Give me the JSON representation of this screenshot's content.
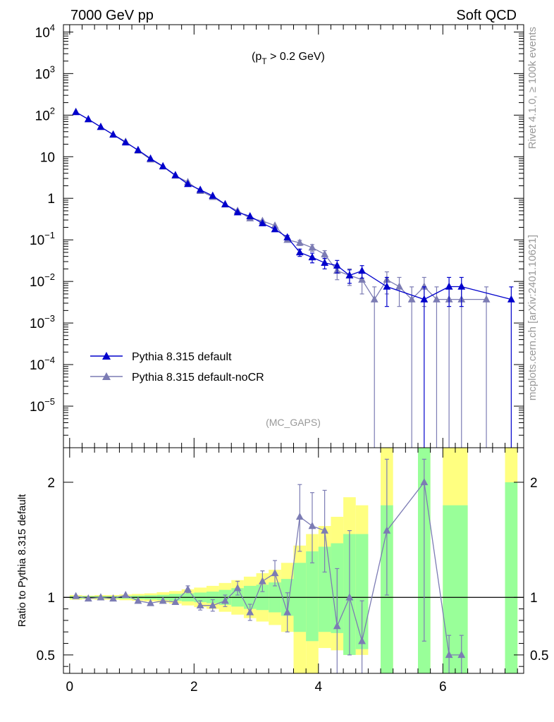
{
  "header": {
    "left": "7000 GeV pp",
    "right": "Soft QCD"
  },
  "side": {
    "rivet": "Rivet 4.1.0, ≥ 100k events",
    "site": "mcplots.cern.ch [arXiv:2401.10621]"
  },
  "cut_label": {
    "base": "(p",
    "sub": "T",
    "rest": " > 0.2 GeV)"
  },
  "analysis": "(MC_GAPS)",
  "colors": {
    "default": "#0000cc",
    "nocr": "#7c7cb4",
    "band_yellow": "#ffff80",
    "band_green": "#99ff99"
  },
  "chart_data": [
    {
      "type": "line",
      "panel": "main",
      "yscale": "log",
      "xlim": [
        -0.1,
        7.3
      ],
      "ylim": [
        1e-06,
        15000
      ],
      "y_ticks": [
        {
          "v": 10000.0,
          "b": "10",
          "e": "4"
        },
        {
          "v": 1000.0,
          "b": "10",
          "e": "3"
        },
        {
          "v": 100.0,
          "b": "10",
          "e": "2"
        },
        {
          "v": 10,
          "b": "10",
          "e": ""
        },
        {
          "v": 1,
          "b": "1",
          "e": ""
        },
        {
          "v": 0.1,
          "b": "10",
          "e": "−1"
        },
        {
          "v": 0.01,
          "b": "10",
          "e": "−2"
        },
        {
          "v": 0.001,
          "b": "10",
          "e": "−3"
        },
        {
          "v": 0.0001,
          "b": "10",
          "e": "−4"
        },
        {
          "v": 1e-05,
          "b": "10",
          "e": "−5"
        }
      ],
      "legend": {
        "position": "lower-left",
        "entries": [
          "Pythia 8.315 default",
          "Pythia 8.315 default-noCR"
        ]
      },
      "series": [
        {
          "name": "Pythia 8.315 default",
          "x": [
            0.1,
            0.3,
            0.5,
            0.7,
            0.9,
            1.1,
            1.3,
            1.5,
            1.7,
            1.9,
            2.1,
            2.3,
            2.5,
            2.7,
            2.9,
            3.1,
            3.3,
            3.5,
            3.7,
            3.9,
            4.1,
            4.3,
            4.5,
            4.7,
            5.1,
            5.7,
            6.1,
            6.3,
            7.1
          ],
          "y": [
            118,
            80,
            52,
            34,
            22,
            14.5,
            9,
            5.9,
            3.6,
            2.2,
            1.6,
            1.15,
            0.72,
            0.46,
            0.37,
            0.25,
            0.18,
            0.115,
            0.05,
            0.038,
            0.028,
            0.024,
            0.014,
            0.018,
            0.0075,
            0.0037,
            0.0075,
            0.0075,
            0.0037
          ],
          "err": [
            0,
            0,
            0,
            0,
            0,
            0,
            0,
            0,
            0,
            0,
            0,
            0,
            0,
            0,
            0,
            0,
            0,
            0.012,
            0.01,
            0.01,
            0.008,
            0.008,
            0.005,
            0.006,
            0.005,
            0.0037,
            0.005,
            0.005,
            0.0037
          ]
        },
        {
          "name": "Pythia 8.315 default-noCR",
          "x": [
            0.1,
            0.3,
            0.5,
            0.7,
            0.9,
            1.1,
            1.3,
            1.5,
            1.7,
            1.9,
            2.1,
            2.3,
            2.5,
            2.7,
            2.9,
            3.1,
            3.3,
            3.5,
            3.7,
            3.9,
            4.1,
            4.3,
            4.5,
            4.7,
            4.9,
            5.1,
            5.3,
            5.5,
            5.7,
            5.9,
            6.1,
            6.3,
            6.7
          ],
          "y": [
            120,
            79,
            52,
            34,
            23,
            14,
            8.6,
            5.8,
            3.5,
            2.45,
            1.5,
            1.08,
            0.71,
            0.5,
            0.33,
            0.285,
            0.22,
            0.1,
            0.085,
            0.065,
            0.045,
            0.018,
            0.014,
            0.011,
            0.0037,
            0.011,
            0.0075,
            0.0037,
            0.0075,
            0.0037,
            0.0037,
            0.0037,
            0.0037
          ],
          "err": [
            0,
            0,
            0,
            0,
            0,
            0,
            0,
            0,
            0,
            0,
            0,
            0,
            0,
            0,
            0,
            0,
            0,
            0.012,
            0.012,
            0.012,
            0.01,
            0.007,
            0.006,
            0.006,
            0.0037,
            0.006,
            0.005,
            0.0037,
            0.005,
            0.0037,
            0.0037,
            0.0037,
            0.0037
          ]
        }
      ]
    },
    {
      "type": "line",
      "panel": "ratio",
      "ylabel": "Ratio to Pythia 8.315 default",
      "xlim": [
        -0.1,
        7.3
      ],
      "ylim": [
        0.34,
        2.3
      ],
      "x_ticks": [
        0,
        2,
        4,
        6
      ],
      "y_ticks": [
        0.5,
        1,
        2
      ],
      "bands": [
        {
          "x0": 0.0,
          "x1": 0.2,
          "y": [
            0.98,
            1.02
          ],
          "g": [
            0.99,
            1.01
          ]
        },
        {
          "x0": 0.2,
          "x1": 0.4,
          "y": [
            0.985,
            1.015
          ],
          "g": [
            0.99,
            1.01
          ]
        },
        {
          "x0": 0.4,
          "x1": 0.6,
          "y": [
            0.98,
            1.02
          ],
          "g": [
            0.99,
            1.01
          ]
        },
        {
          "x0": 0.6,
          "x1": 0.8,
          "y": [
            0.98,
            1.02
          ],
          "g": [
            0.99,
            1.01
          ]
        },
        {
          "x0": 0.8,
          "x1": 1.0,
          "y": [
            0.975,
            1.025
          ],
          "g": [
            0.988,
            1.012
          ]
        },
        {
          "x0": 1.0,
          "x1": 1.2,
          "y": [
            0.97,
            1.03
          ],
          "g": [
            0.985,
            1.015
          ]
        },
        {
          "x0": 1.2,
          "x1": 1.4,
          "y": [
            0.965,
            1.035
          ],
          "g": [
            0.982,
            1.018
          ]
        },
        {
          "x0": 1.4,
          "x1": 1.6,
          "y": [
            0.955,
            1.045
          ],
          "g": [
            0.978,
            1.022
          ]
        },
        {
          "x0": 1.6,
          "x1": 1.8,
          "y": [
            0.945,
            1.055
          ],
          "g": [
            0.97,
            1.03
          ]
        },
        {
          "x0": 1.8,
          "x1": 2.0,
          "y": [
            0.93,
            1.07
          ],
          "g": [
            0.965,
            1.035
          ]
        },
        {
          "x0": 2.0,
          "x1": 2.2,
          "y": [
            0.915,
            1.085
          ],
          "g": [
            0.958,
            1.042
          ]
        },
        {
          "x0": 2.2,
          "x1": 2.4,
          "y": [
            0.9,
            1.1
          ],
          "g": [
            0.95,
            1.05
          ]
        },
        {
          "x0": 2.4,
          "x1": 2.6,
          "y": [
            0.875,
            1.125
          ],
          "g": [
            0.935,
            1.065
          ]
        },
        {
          "x0": 2.6,
          "x1": 2.8,
          "y": [
            0.85,
            1.15
          ],
          "g": [
            0.92,
            1.08
          ]
        },
        {
          "x0": 2.8,
          "x1": 3.0,
          "y": [
            0.82,
            1.18
          ],
          "g": [
            0.9,
            1.1
          ]
        },
        {
          "x0": 3.0,
          "x1": 3.2,
          "y": [
            0.79,
            1.21
          ],
          "g": [
            0.89,
            1.11
          ]
        },
        {
          "x0": 3.2,
          "x1": 3.4,
          "y": [
            0.76,
            1.24
          ],
          "g": [
            0.87,
            1.13
          ]
        },
        {
          "x0": 3.4,
          "x1": 3.6,
          "y": [
            0.7,
            1.3
          ],
          "g": [
            0.84,
            1.16
          ]
        },
        {
          "x0": 3.6,
          "x1": 3.8,
          "y": [
            0.34,
            1.45
          ],
          "g": [
            0.7,
            1.3
          ]
        },
        {
          "x0": 3.8,
          "x1": 4.0,
          "y": [
            0.34,
            1.55
          ],
          "g": [
            0.62,
            1.4
          ]
        },
        {
          "x0": 4.0,
          "x1": 4.2,
          "y": [
            0.56,
            1.62
          ],
          "g": [
            0.7,
            1.44
          ]
        },
        {
          "x0": 4.2,
          "x1": 4.4,
          "y": [
            0.54,
            1.7
          ],
          "g": [
            0.69,
            1.47
          ]
        },
        {
          "x0": 4.4,
          "x1": 4.6,
          "y": [
            0.5,
            1.87
          ],
          "g": [
            0.5,
            1.55
          ]
        },
        {
          "x0": 4.6,
          "x1": 4.8,
          "y": [
            0.5,
            1.8
          ],
          "g": [
            0.55,
            1.55
          ]
        },
        {
          "x0": 5.0,
          "x1": 5.2,
          "y": [
            0.34,
            2.3
          ],
          "g": [
            0.34,
            1.8
          ]
        },
        {
          "x0": 5.6,
          "x1": 5.8,
          "y": [
            0.34,
            2.3
          ],
          "g": [
            0.34,
            2.3
          ]
        },
        {
          "x0": 6.0,
          "x1": 6.4,
          "y": [
            0.34,
            2.3
          ],
          "g": [
            0.34,
            1.8
          ]
        },
        {
          "x0": 7.0,
          "x1": 7.2,
          "y": [
            0.34,
            2.3
          ],
          "g": [
            0.34,
            2.0
          ]
        }
      ],
      "series": [
        {
          "name": "Pythia 8.315 default-noCR",
          "x": [
            0.1,
            0.3,
            0.5,
            0.7,
            0.9,
            1.1,
            1.3,
            1.5,
            1.7,
            1.9,
            2.1,
            2.3,
            2.5,
            2.7,
            2.9,
            3.1,
            3.3,
            3.5,
            3.7,
            3.9,
            4.1,
            4.3,
            4.5,
            4.7,
            5.1,
            5.7,
            6.1,
            6.3
          ],
          "y": [
            1.01,
            0.99,
            1.0,
            0.99,
            1.02,
            0.97,
            0.95,
            0.97,
            0.96,
            1.07,
            0.93,
            0.93,
            0.97,
            1.08,
            0.87,
            1.14,
            1.21,
            0.87,
            1.7,
            1.62,
            1.58,
            0.75,
            1.0,
            0.62,
            1.58,
            2.0,
            0.5,
            0.5
          ],
          "lo": [
            1.01,
            0.99,
            1.0,
            0.99,
            1.02,
            0.97,
            0.95,
            0.97,
            0.96,
            1.04,
            0.89,
            0.88,
            0.92,
            1.02,
            0.8,
            1.05,
            1.1,
            0.7,
            1.4,
            1.3,
            1.22,
            0.34,
            0.5,
            0.34,
            1.02,
            0.62,
            0.34,
            0.34
          ],
          "hi": [
            1.01,
            0.99,
            1.0,
            0.99,
            1.02,
            0.97,
            0.95,
            0.97,
            0.96,
            1.1,
            0.97,
            0.98,
            1.02,
            1.14,
            0.94,
            1.23,
            1.32,
            1.04,
            1.98,
            1.91,
            1.93,
            1.25,
            1.58,
            0.97,
            2.2,
            2.2,
            0.67,
            0.67
          ]
        }
      ]
    }
  ]
}
